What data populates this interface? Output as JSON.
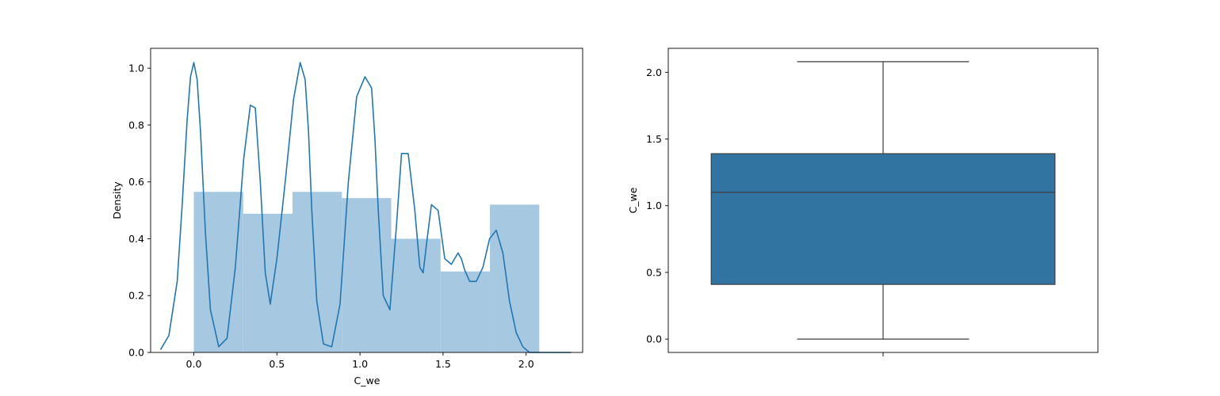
{
  "chart_data": [
    {
      "type": "histogram",
      "xlabel": "C_we",
      "ylabel": "Density",
      "xlim": [
        -0.26,
        2.34
      ],
      "ylim": [
        0.0,
        1.07
      ],
      "grid": false,
      "x_ticks": [
        {
          "value": 0.0,
          "label": "0.0"
        },
        {
          "value": 0.5,
          "label": "0.5"
        },
        {
          "value": 1.0,
          "label": "1.0"
        },
        {
          "value": 1.5,
          "label": "1.5"
        },
        {
          "value": 2.0,
          "label": "2.0"
        }
      ],
      "y_ticks": [
        {
          "value": 0.0,
          "label": "0.0"
        },
        {
          "value": 0.2,
          "label": "0.2"
        },
        {
          "value": 0.4,
          "label": "0.4"
        },
        {
          "value": 0.6,
          "label": "0.6"
        },
        {
          "value": 0.8,
          "label": "0.8"
        },
        {
          "value": 1.0,
          "label": "1.0"
        }
      ],
      "bin_edges": [
        0.0,
        0.297,
        0.594,
        0.891,
        1.188,
        1.485,
        1.782,
        2.079
      ],
      "bin_values": [
        0.565,
        0.488,
        0.565,
        0.543,
        0.4,
        0.285,
        0.52
      ],
      "bar_color": "#a6c8e1",
      "kde_color": "#1f77b4",
      "kde": {
        "x": [
          -0.2,
          -0.15,
          -0.1,
          -0.07,
          -0.04,
          -0.02,
          0.0,
          0.02,
          0.04,
          0.07,
          0.1,
          0.15,
          0.2,
          0.25,
          0.3,
          0.34,
          0.37,
          0.4,
          0.43,
          0.46,
          0.5,
          0.55,
          0.6,
          0.64,
          0.67,
          0.69,
          0.71,
          0.74,
          0.78,
          0.83,
          0.88,
          0.93,
          0.98,
          1.03,
          1.07,
          1.09,
          1.11,
          1.14,
          1.18,
          1.22,
          1.25,
          1.29,
          1.33,
          1.36,
          1.38,
          1.4,
          1.43,
          1.47,
          1.51,
          1.55,
          1.59,
          1.61,
          1.63,
          1.66,
          1.7,
          1.74,
          1.78,
          1.82,
          1.86,
          1.9,
          1.94,
          1.98,
          2.02,
          2.06,
          2.08,
          2.1,
          2.14,
          2.18,
          2.22,
          2.27
        ],
        "y": [
          0.01,
          0.06,
          0.25,
          0.52,
          0.82,
          0.97,
          1.02,
          0.96,
          0.78,
          0.42,
          0.15,
          0.02,
          0.05,
          0.3,
          0.68,
          0.87,
          0.86,
          0.6,
          0.28,
          0.17,
          0.33,
          0.6,
          0.89,
          1.02,
          0.96,
          0.78,
          0.5,
          0.18,
          0.03,
          0.02,
          0.17,
          0.6,
          0.9,
          0.97,
          0.93,
          0.75,
          0.5,
          0.2,
          0.15,
          0.45,
          0.7,
          0.7,
          0.5,
          0.3,
          0.28,
          0.38,
          0.52,
          0.5,
          0.33,
          0.31,
          0.35,
          0.33,
          0.29,
          0.25,
          0.25,
          0.3,
          0.4,
          0.43,
          0.35,
          0.18,
          0.07,
          0.02,
          0.0,
          0.0,
          0.0,
          0.0,
          0.0,
          0.0,
          0.0,
          0.0
        ]
      }
    },
    {
      "type": "box",
      "ylabel": "C_we",
      "ylim": [
        -0.1,
        2.18
      ],
      "grid": false,
      "y_ticks": [
        {
          "value": 0.0,
          "label": "0.0"
        },
        {
          "value": 0.5,
          "label": "0.5"
        },
        {
          "value": 1.0,
          "label": "1.0"
        },
        {
          "value": 1.5,
          "label": "1.5"
        },
        {
          "value": 2.0,
          "label": "2.0"
        }
      ],
      "box": {
        "whisker_low": 0.0,
        "q1": 0.41,
        "median": 1.1,
        "q3": 1.39,
        "whisker_high": 2.08
      },
      "box_color": "#3274a1",
      "line_color": "#3d3d3d"
    }
  ]
}
